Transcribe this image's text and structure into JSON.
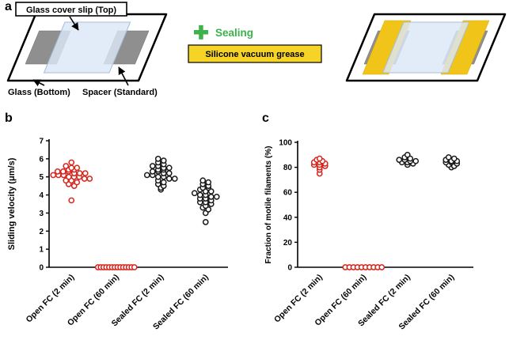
{
  "figure": {
    "panel_a_label": "a",
    "panel_b_label": "b",
    "panel_c_label": "c"
  },
  "diagram": {
    "cover_slip_label": "Glass cover slip (Top)",
    "glass_bottom_label": "Glass (Bottom)",
    "spacer_label": "Spacer (Standard)",
    "sealing_label": "Sealing",
    "grease_label": "Silicone vacuum grease",
    "colors": {
      "sealing_green": "#3bb24a",
      "grease_yellow": "#f5d327",
      "spacer_gray": "#8f8f8f",
      "cover_slip_blue": "#dbe8f6"
    }
  },
  "chart_data": [
    {
      "id": "b",
      "type": "scatter",
      "ylabel": "Sliding velocity (μm/s)",
      "ylim": [
        0,
        7
      ],
      "yticks": [
        0,
        1,
        2,
        3,
        4,
        5,
        6,
        7
      ],
      "bin": 0.2,
      "grid": false,
      "categories": [
        "Open FC (2 min)",
        "Open FC (60 min)",
        "Sealed FC (2 min)",
        "Sealed FC (60 min)"
      ],
      "series": [
        {
          "category": "Open FC (2 min)",
          "color": "#d6251d",
          "values": [
            5.8,
            5.6,
            5.5,
            5.5,
            5.4,
            5.4,
            5.3,
            5.3,
            5.3,
            5.2,
            5.2,
            5.2,
            5.1,
            5.1,
            5.1,
            5.0,
            5.0,
            5.0,
            4.9,
            4.9,
            4.8,
            4.8,
            4.7,
            4.6,
            4.5,
            3.7
          ]
        },
        {
          "category": "Open FC (60 min)",
          "color": "#d6251d",
          "values": [
            0,
            0,
            0,
            0,
            0,
            0,
            0,
            0,
            0,
            0,
            0,
            0,
            0,
            0
          ]
        },
        {
          "category": "Sealed FC (2 min)",
          "color": "#1a1a1a",
          "values": [
            6.0,
            5.9,
            5.8,
            5.7,
            5.6,
            5.6,
            5.5,
            5.5,
            5.4,
            5.4,
            5.3,
            5.3,
            5.2,
            5.2,
            5.1,
            5.1,
            5.0,
            5.0,
            4.9,
            4.9,
            4.8,
            4.7,
            4.6,
            4.5,
            4.4,
            4.3
          ]
        },
        {
          "category": "Sealed FC (60 min)",
          "color": "#1a1a1a",
          "values": [
            4.8,
            4.7,
            4.6,
            4.5,
            4.4,
            4.4,
            4.3,
            4.2,
            4.2,
            4.1,
            4.0,
            4.0,
            3.9,
            3.9,
            3.8,
            3.8,
            3.7,
            3.6,
            3.6,
            3.5,
            3.4,
            3.3,
            3.2,
            3.0,
            2.5
          ]
        }
      ]
    },
    {
      "id": "c",
      "type": "scatter",
      "ylabel": "Fraction of motile filaments (%)",
      "ylim": [
        0,
        100
      ],
      "yticks": [
        0,
        20,
        40,
        60,
        80,
        100
      ],
      "bin": 2,
      "grid": false,
      "categories": [
        "Open FC (2 min)",
        "Open FC (60 min)",
        "Sealed FC (2 min)",
        "Sealed FC (60 min)"
      ],
      "series": [
        {
          "category": "Open FC (2 min)",
          "color": "#d6251d",
          "values": [
            87,
            86,
            85,
            84,
            84,
            83,
            82,
            82,
            81,
            80,
            78,
            75
          ]
        },
        {
          "category": "Open FC (60 min)",
          "color": "#d6251d",
          "values": [
            0,
            0,
            0,
            0,
            0,
            0,
            0,
            0,
            0,
            0
          ]
        },
        {
          "category": "Sealed FC (2 min)",
          "color": "#1a1a1a",
          "values": [
            90,
            88,
            87,
            86,
            86,
            85,
            85,
            84,
            84,
            83,
            82
          ]
        },
        {
          "category": "Sealed FC (60 min)",
          "color": "#1a1a1a",
          "values": [
            88,
            87,
            86,
            85,
            85,
            84,
            84,
            83,
            82,
            81,
            80
          ]
        }
      ]
    }
  ]
}
